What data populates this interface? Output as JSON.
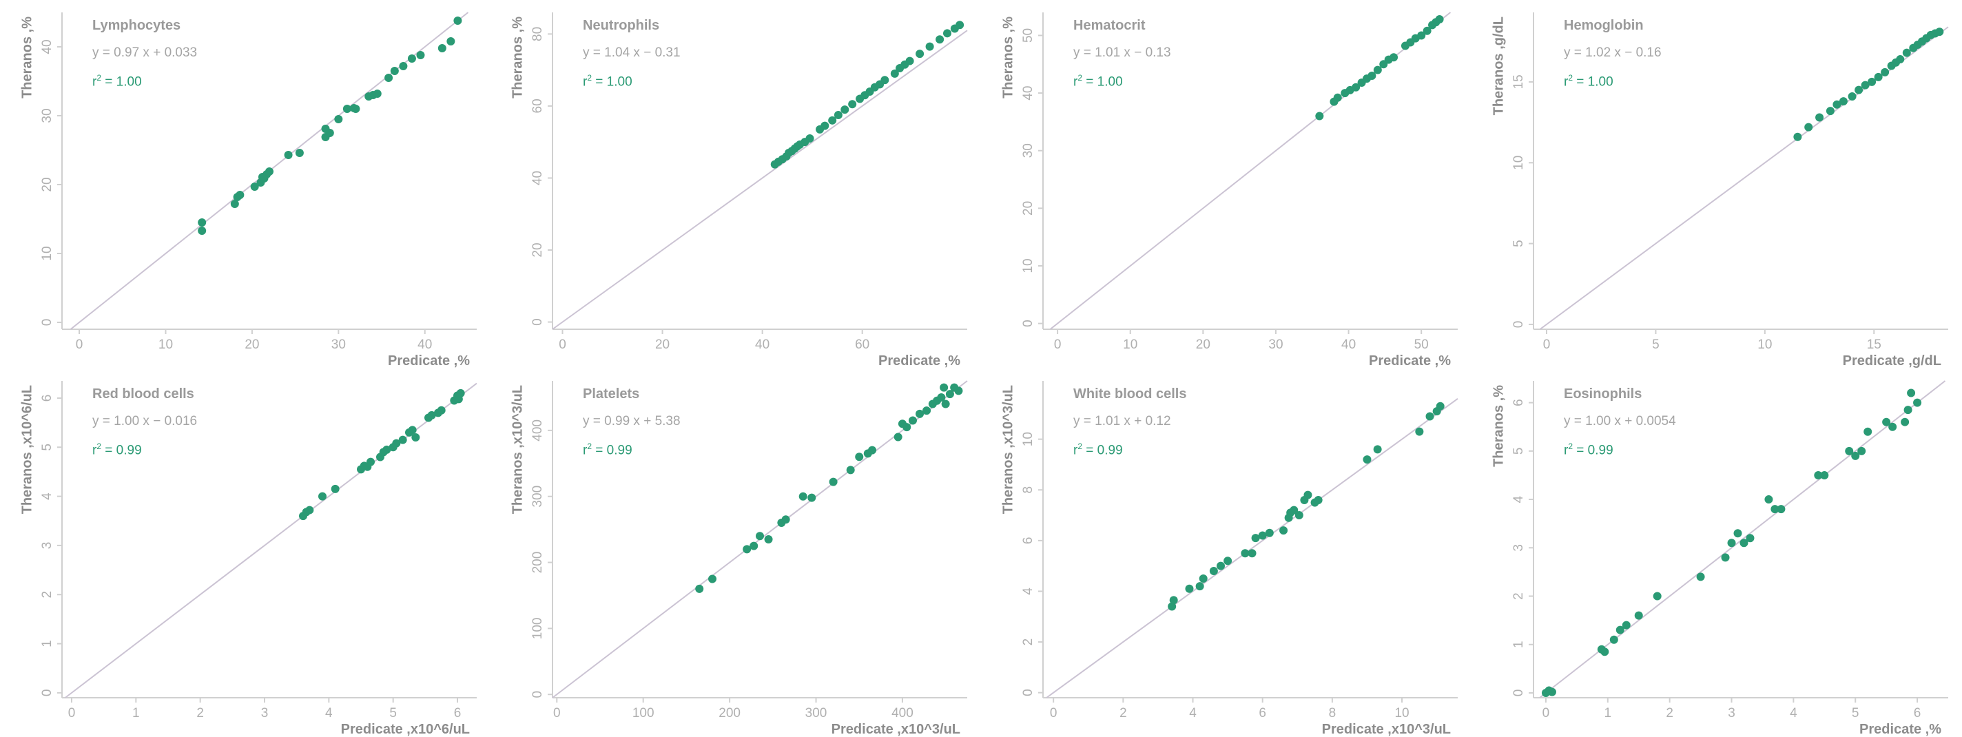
{
  "chart_data": [
    {
      "type": "scatter",
      "title": "Lymphocytes",
      "equation": "y = 0.97 x + 0.033",
      "r2_label": "r",
      "r2_value": "= 1.00",
      "xlabel": "Predicate ,%",
      "ylabel": "Theranos ,%",
      "xlim": [
        -2,
        46
      ],
      "ylim": [
        -1,
        45
      ],
      "xticks": [
        0,
        10,
        20,
        30,
        40
      ],
      "xtick_labels": [
        "0",
        "10",
        "20",
        "30",
        "40"
      ],
      "yticks": [
        0,
        10,
        20,
        30,
        40
      ],
      "ytick_labels": [
        "0",
        "10",
        "20",
        "30",
        "40"
      ],
      "points": [
        [
          14.2,
          14.5
        ],
        [
          14.2,
          13.3
        ],
        [
          18,
          17.2
        ],
        [
          18.3,
          18.2
        ],
        [
          18.6,
          18.5
        ],
        [
          20.3,
          19.7
        ],
        [
          21,
          20.3
        ],
        [
          21.4,
          20.9
        ],
        [
          21.7,
          21.5
        ],
        [
          22,
          21.9
        ],
        [
          21.2,
          21.1
        ],
        [
          24.2,
          24.3
        ],
        [
          25.5,
          24.6
        ],
        [
          28.5,
          26.9
        ],
        [
          28.5,
          28.1
        ],
        [
          29,
          27.5
        ],
        [
          30,
          29.5
        ],
        [
          31,
          31
        ],
        [
          31.8,
          31.1
        ],
        [
          32,
          31
        ],
        [
          33.5,
          32.8
        ],
        [
          34,
          33
        ],
        [
          34.5,
          33.2
        ],
        [
          35.8,
          35.5
        ],
        [
          36.5,
          36.5
        ],
        [
          37.5,
          37.2
        ],
        [
          38.5,
          38.3
        ],
        [
          39.5,
          38.8
        ],
        [
          42,
          39.8
        ],
        [
          43,
          40.8
        ],
        [
          43.8,
          43.8
        ]
      ],
      "fit": {
        "slope": 0.97,
        "intercept": 0.033
      },
      "grid": false
    },
    {
      "type": "scatter",
      "title": "Neutrophils",
      "equation": "y = 1.04 x − 0.31",
      "r2_label": "r",
      "r2_value": "= 1.00",
      "xlabel": "Predicate ,%",
      "ylabel": "Theranos ,%",
      "xlim": [
        -2,
        81
      ],
      "ylim": [
        -2,
        86
      ],
      "xticks": [
        0,
        20,
        40,
        60
      ],
      "xtick_labels": [
        "0",
        "20",
        "40",
        "60"
      ],
      "yticks": [
        0,
        20,
        40,
        60,
        80
      ],
      "ytick_labels": [
        "0",
        "20",
        "40",
        "60",
        "80"
      ],
      "points": [
        [
          42.5,
          43.8
        ],
        [
          43.2,
          44.5
        ],
        [
          44,
          45.2
        ],
        [
          44.8,
          46
        ],
        [
          45.3,
          47
        ],
        [
          45.9,
          47.5
        ],
        [
          46.5,
          48.2
        ],
        [
          47,
          48.8
        ],
        [
          47.5,
          49.3
        ],
        [
          48.5,
          50
        ],
        [
          49.5,
          51
        ],
        [
          51.5,
          53.5
        ],
        [
          52.5,
          54.5
        ],
        [
          54,
          56
        ],
        [
          55.2,
          57.5
        ],
        [
          56.5,
          59
        ],
        [
          58,
          60.5
        ],
        [
          59.5,
          62
        ],
        [
          60.5,
          63
        ],
        [
          61.5,
          64
        ],
        [
          62.5,
          65.2
        ],
        [
          63.5,
          66
        ],
        [
          64.5,
          67.2
        ],
        [
          66.5,
          69
        ],
        [
          67.5,
          70.5
        ],
        [
          68.5,
          71.5
        ],
        [
          69.5,
          72.5
        ],
        [
          71.5,
          74.5
        ],
        [
          73.5,
          76.5
        ],
        [
          75.5,
          78.5
        ],
        [
          77,
          80.2
        ],
        [
          78.5,
          81.5
        ],
        [
          79.5,
          82.5
        ]
      ],
      "fit": {
        "slope": 1.04,
        "intercept": -0.31
      },
      "grid": false
    },
    {
      "type": "scatter",
      "title": "Hematocrit",
      "equation": "y = 1.01 x − 0.13",
      "r2_label": "r",
      "r2_value": "= 1.00",
      "xlabel": "Predicate ,%",
      "ylabel": "Theranos ,%",
      "xlim": [
        -2,
        55
      ],
      "ylim": [
        -1,
        54
      ],
      "xticks": [
        0,
        10,
        20,
        30,
        40,
        50
      ],
      "xtick_labels": [
        "0",
        "10",
        "20",
        "30",
        "40",
        "50"
      ],
      "yticks": [
        0,
        10,
        20,
        30,
        40,
        50
      ],
      "ytick_labels": [
        "0",
        "10",
        "20",
        "30",
        "40",
        "50"
      ],
      "points": [
        [
          36,
          36
        ],
        [
          38,
          38.5
        ],
        [
          38.5,
          39.2
        ],
        [
          39.5,
          40
        ],
        [
          40.2,
          40.5
        ],
        [
          41,
          41
        ],
        [
          41.8,
          41.8
        ],
        [
          42.5,
          42.5
        ],
        [
          43.2,
          43
        ],
        [
          44,
          44
        ],
        [
          44.8,
          45
        ],
        [
          45.5,
          45.8
        ],
        [
          46.2,
          46.2
        ],
        [
          47.8,
          48.2
        ],
        [
          48.5,
          48.8
        ],
        [
          49.2,
          49.5
        ],
        [
          50,
          50
        ],
        [
          50.8,
          50.8
        ],
        [
          51.5,
          51.8
        ],
        [
          52,
          52.3
        ],
        [
          52.5,
          52.8
        ]
      ],
      "fit": {
        "slope": 1.01,
        "intercept": -0.13
      },
      "grid": false
    },
    {
      "type": "scatter",
      "title": "Hemoglobin",
      "equation": "y = 1.02 x − 0.16",
      "r2_label": "r",
      "r2_value": "= 1.00",
      "xlabel": "Predicate ,g/dL",
      "ylabel": "Theranos ,g/dL",
      "xlim": [
        -0.6,
        18.4
      ],
      "ylim": [
        -0.3,
        19.3
      ],
      "xticks": [
        0,
        5,
        10,
        15
      ],
      "xtick_labels": [
        "0",
        "5",
        "10",
        "15"
      ],
      "yticks": [
        0,
        5,
        10,
        15
      ],
      "ytick_labels": [
        "0",
        "5",
        "10",
        "15"
      ],
      "points": [
        [
          11.5,
          11.6
        ],
        [
          12,
          12.2
        ],
        [
          12.5,
          12.8
        ],
        [
          13,
          13.2
        ],
        [
          13.3,
          13.6
        ],
        [
          13.6,
          13.8
        ],
        [
          14,
          14.1
        ],
        [
          14.3,
          14.5
        ],
        [
          14.6,
          14.8
        ],
        [
          14.9,
          15
        ],
        [
          15.2,
          15.3
        ],
        [
          15.5,
          15.6
        ],
        [
          15.8,
          16
        ],
        [
          16,
          16.2
        ],
        [
          16.2,
          16.4
        ],
        [
          16.5,
          16.8
        ],
        [
          16.8,
          17.1
        ],
        [
          17,
          17.3
        ],
        [
          17.2,
          17.5
        ],
        [
          17.4,
          17.7
        ],
        [
          17.6,
          17.9
        ],
        [
          17.8,
          18
        ],
        [
          18,
          18.1
        ]
      ],
      "fit": {
        "slope": 1.02,
        "intercept": -0.16
      },
      "grid": false
    },
    {
      "type": "scatter",
      "title": "Red blood cells",
      "equation": "y = 1.00 x − 0.016",
      "r2_label": "r",
      "r2_value": "= 0.99",
      "xlabel": "Predicate ,x10^6/uL",
      "ylabel": "Theranos ,x10^6/uL",
      "xlim": [
        -0.15,
        6.3
      ],
      "ylim": [
        -0.1,
        6.35
      ],
      "xticks": [
        0,
        1,
        2,
        3,
        4,
        5,
        6
      ],
      "xtick_labels": [
        "0",
        "1",
        "2",
        "3",
        "4",
        "5",
        "6"
      ],
      "yticks": [
        0,
        1,
        2,
        3,
        4,
        5,
        6
      ],
      "ytick_labels": [
        "0",
        "1",
        "2",
        "3",
        "4",
        "5",
        "6"
      ],
      "points": [
        [
          3.6,
          3.6
        ],
        [
          3.65,
          3.68
        ],
        [
          3.7,
          3.72
        ],
        [
          3.9,
          4
        ],
        [
          4.1,
          4.15
        ],
        [
          4.5,
          4.55
        ],
        [
          4.55,
          4.62
        ],
        [
          4.6,
          4.6
        ],
        [
          4.65,
          4.7
        ],
        [
          4.8,
          4.8
        ],
        [
          4.85,
          4.9
        ],
        [
          4.9,
          4.95
        ],
        [
          5.0,
          5.0
        ],
        [
          5.05,
          5.08
        ],
        [
          5.15,
          5.15
        ],
        [
          5.25,
          5.3
        ],
        [
          5.3,
          5.35
        ],
        [
          5.35,
          5.2
        ],
        [
          5.55,
          5.6
        ],
        [
          5.6,
          5.65
        ],
        [
          5.7,
          5.7
        ],
        [
          5.75,
          5.75
        ],
        [
          5.95,
          5.95
        ],
        [
          6,
          6.05
        ],
        [
          6.02,
          5.98
        ],
        [
          6.05,
          6.1
        ]
      ],
      "fit": {
        "slope": 1.0,
        "intercept": -0.016
      },
      "grid": false
    },
    {
      "type": "scatter",
      "title": "Platelets",
      "equation": "y = 0.99 x + 5.38",
      "r2_label": "r",
      "r2_value": "= 0.99",
      "xlabel": "Predicate ,x10^3/uL",
      "ylabel": "Theranos ,x10^3/uL",
      "xlim": [
        -5,
        475
      ],
      "ylim": [
        -5,
        475
      ],
      "xticks": [
        0,
        100,
        200,
        300,
        400
      ],
      "xtick_labels": [
        "0",
        "100",
        "200",
        "300",
        "400"
      ],
      "yticks": [
        0,
        100,
        200,
        300,
        400
      ],
      "ytick_labels": [
        "0",
        "100",
        "200",
        "300",
        "400"
      ],
      "points": [
        [
          165,
          160
        ],
        [
          180,
          175
        ],
        [
          220,
          220
        ],
        [
          228,
          225
        ],
        [
          235,
          240
        ],
        [
          245,
          235
        ],
        [
          260,
          260
        ],
        [
          265,
          265
        ],
        [
          285,
          300
        ],
        [
          295,
          298
        ],
        [
          320,
          322
        ],
        [
          340,
          340
        ],
        [
          350,
          360
        ],
        [
          360,
          365
        ],
        [
          365,
          370
        ],
        [
          395,
          390
        ],
        [
          400,
          410
        ],
        [
          405,
          405
        ],
        [
          412,
          415
        ],
        [
          420,
          425
        ],
        [
          428,
          430
        ],
        [
          435,
          440
        ],
        [
          440,
          445
        ],
        [
          445,
          450
        ],
        [
          450,
          440
        ],
        [
          455,
          455
        ],
        [
          460,
          465
        ],
        [
          465,
          460
        ],
        [
          448,
          465
        ]
      ],
      "fit": {
        "slope": 0.99,
        "intercept": 5.38
      },
      "grid": false
    },
    {
      "type": "scatter",
      "title": "White blood cells",
      "equation": "y = 1.01 x + 0.12",
      "r2_label": "r",
      "r2_value": "= 0.99",
      "xlabel": "Predicate ,x10^3/uL",
      "ylabel": "Theranos ,x10^3/uL",
      "xlim": [
        -0.3,
        11.6
      ],
      "ylim": [
        -0.2,
        12.3
      ],
      "xticks": [
        0,
        2,
        4,
        6,
        8,
        10
      ],
      "xtick_labels": [
        "0",
        "2",
        "4",
        "6",
        "8",
        "10"
      ],
      "yticks": [
        0,
        2,
        4,
        6,
        8,
        10
      ],
      "ytick_labels": [
        "0",
        "2",
        "4",
        "6",
        "8",
        "10"
      ],
      "points": [
        [
          3.4,
          3.4
        ],
        [
          3.45,
          3.65
        ],
        [
          3.9,
          4.1
        ],
        [
          4.2,
          4.2
        ],
        [
          4.3,
          4.5
        ],
        [
          4.6,
          4.8
        ],
        [
          4.8,
          5.0
        ],
        [
          5.0,
          5.2
        ],
        [
          5.5,
          5.5
        ],
        [
          5.7,
          5.5
        ],
        [
          5.8,
          6.1
        ],
        [
          6.0,
          6.2
        ],
        [
          6.2,
          6.3
        ],
        [
          6.6,
          6.4
        ],
        [
          6.75,
          6.9
        ],
        [
          6.8,
          7.1
        ],
        [
          6.9,
          7.2
        ],
        [
          7.05,
          7.0
        ],
        [
          7.2,
          7.6
        ],
        [
          7.3,
          7.8
        ],
        [
          7.5,
          7.5
        ],
        [
          7.6,
          7.6
        ],
        [
          9.0,
          9.2
        ],
        [
          9.3,
          9.6
        ],
        [
          10.5,
          10.3
        ],
        [
          10.8,
          10.9
        ],
        [
          11.0,
          11.1
        ],
        [
          11.1,
          11.3
        ]
      ],
      "fit": {
        "slope": 1.01,
        "intercept": 0.12
      },
      "grid": false
    },
    {
      "type": "scatter",
      "title": "Eosinophils",
      "equation": "y = 1.00 x + 0.0054",
      "r2_label": "r",
      "r2_value": "= 0.99",
      "xlabel": "Predicate ,%",
      "ylabel": "Theranos ,%",
      "xlim": [
        -0.2,
        6.5
      ],
      "ylim": [
        -0.1,
        6.45
      ],
      "xticks": [
        0,
        1,
        2,
        3,
        4,
        5,
        6
      ],
      "xtick_labels": [
        "0",
        "1",
        "2",
        "3",
        "4",
        "5",
        "6"
      ],
      "yticks": [
        0,
        1,
        2,
        3,
        4,
        5,
        6
      ],
      "ytick_labels": [
        "0",
        "1",
        "2",
        "3",
        "4",
        "5",
        "6"
      ],
      "points": [
        [
          0,
          0
        ],
        [
          0.05,
          0.05
        ],
        [
          0.1,
          0.02
        ],
        [
          0.9,
          0.9
        ],
        [
          0.95,
          0.85
        ],
        [
          1.1,
          1.1
        ],
        [
          1.2,
          1.3
        ],
        [
          1.3,
          1.4
        ],
        [
          1.5,
          1.6
        ],
        [
          1.8,
          2.0
        ],
        [
          2.5,
          2.4
        ],
        [
          2.9,
          2.8
        ],
        [
          3.0,
          3.1
        ],
        [
          3.1,
          3.3
        ],
        [
          3.2,
          3.1
        ],
        [
          3.3,
          3.2
        ],
        [
          3.6,
          4.0
        ],
        [
          3.7,
          3.8
        ],
        [
          3.8,
          3.8
        ],
        [
          4.4,
          4.5
        ],
        [
          4.5,
          4.5
        ],
        [
          4.9,
          5.0
        ],
        [
          5.0,
          4.9
        ],
        [
          5.1,
          5.0
        ],
        [
          5.2,
          5.4
        ],
        [
          5.5,
          5.6
        ],
        [
          5.6,
          5.5
        ],
        [
          5.8,
          5.6
        ],
        [
          5.85,
          5.85
        ],
        [
          5.9,
          6.2
        ],
        [
          6.0,
          6.0
        ]
      ],
      "fit": {
        "slope": 1.0,
        "intercept": 0.0054
      },
      "grid": false
    }
  ],
  "colors": {
    "point": "#2a9a74",
    "r2_text": "#2a9a74",
    "title_text": "#9a9a9a",
    "equation_text": "#a5a5a5",
    "axis": "#d0d0d0",
    "tick_text": "#b0b0b0",
    "label_text": "#8c8c8c",
    "identity_line": "#cbc3d3"
  }
}
